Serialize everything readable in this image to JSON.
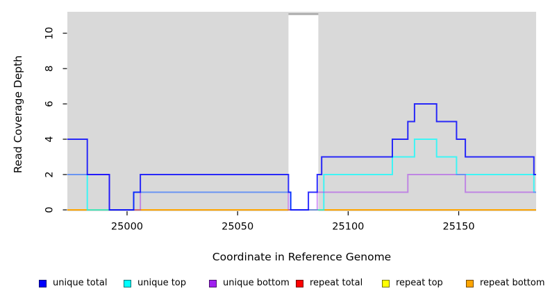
{
  "chart_data": {
    "type": "step-line",
    "title": "",
    "xlabel": "Coordinate in Reference Genome",
    "ylabel": "Read Coverage Depth",
    "xlim": [
      24973,
      25185
    ],
    "ylim": [
      0,
      11.2
    ],
    "x_ticks": [
      25000,
      25050,
      25100,
      25150
    ],
    "y_ticks": [
      0,
      2,
      4,
      6,
      8,
      10
    ],
    "grid": false,
    "legend_position": "bottom",
    "panel_color": "#d9d9d9",
    "gap_band": {
      "x0": 25073,
      "x1": 25086.5,
      "color": "#ffffff",
      "top_strip_color": "#ababab"
    },
    "series": [
      {
        "name": "unique total",
        "color": "#0000ff",
        "values": [
          [
            24973,
            4
          ],
          [
            24982,
            2
          ],
          [
            24992,
            0
          ],
          [
            25003,
            1
          ],
          [
            25006,
            2
          ],
          [
            25073,
            1
          ],
          [
            25074,
            0
          ],
          [
            25082,
            1
          ],
          [
            25086,
            2
          ],
          [
            25088,
            3
          ],
          [
            25120,
            4
          ],
          [
            25127,
            5
          ],
          [
            25130,
            6
          ],
          [
            25140,
            5
          ],
          [
            25149,
            4
          ],
          [
            25153,
            3
          ],
          [
            25184,
            2
          ],
          [
            25185,
            2
          ]
        ]
      },
      {
        "name": "unique top",
        "color": "#00ffff",
        "values": [
          [
            24973,
            2
          ],
          [
            24982,
            0
          ],
          [
            25003,
            1
          ],
          [
            25074,
            0
          ],
          [
            25089,
            2
          ],
          [
            25120,
            3
          ],
          [
            25130,
            4
          ],
          [
            25140,
            3
          ],
          [
            25149,
            2
          ],
          [
            25184,
            1
          ],
          [
            25185,
            1
          ]
        ]
      },
      {
        "name": "unique bottom",
        "color": "#a020f0",
        "values": [
          [
            24973,
            2
          ],
          [
            24992,
            0
          ],
          [
            25006,
            1
          ],
          [
            25073,
            0
          ],
          [
            25086,
            1
          ],
          [
            25127,
            2
          ],
          [
            25153,
            1
          ],
          [
            25185,
            1
          ]
        ]
      },
      {
        "name": "repeat total",
        "color": "#ff0000",
        "values": [
          [
            24973,
            0
          ],
          [
            25185,
            0
          ]
        ]
      },
      {
        "name": "repeat top",
        "color": "#ffff00",
        "values": [
          [
            24973,
            0
          ],
          [
            25185,
            0
          ]
        ]
      },
      {
        "name": "repeat bottom",
        "color": "#ffa500",
        "values": [
          [
            24973,
            0
          ],
          [
            25185,
            0
          ]
        ]
      }
    ]
  }
}
